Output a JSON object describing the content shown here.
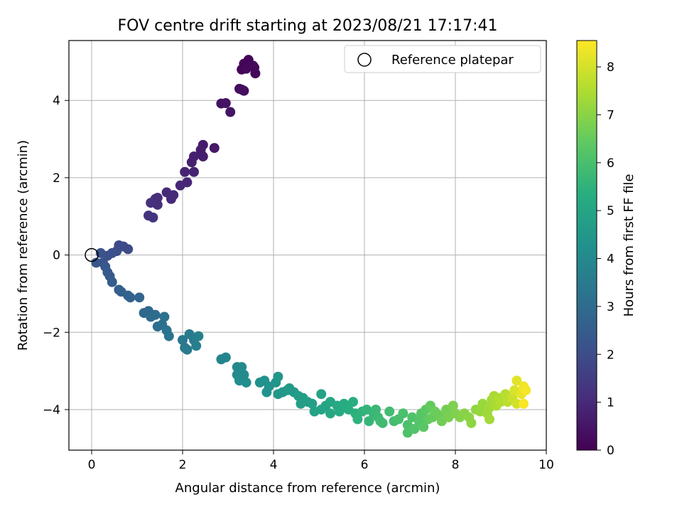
{
  "chart_data": {
    "type": "scatter",
    "title": "FOV centre drift starting at 2023/08/21 17:17:41",
    "xlabel": "Angular distance from reference (arcmin)",
    "ylabel": "Rotation from reference (arcmin)",
    "xlim": [
      -0.5,
      10
    ],
    "ylim": [
      -5.05,
      5.55
    ],
    "xticks": [
      0,
      2,
      4,
      6,
      8,
      10
    ],
    "yticks": [
      -4,
      -2,
      0,
      2,
      4
    ],
    "grid": true,
    "legend": {
      "placement": "top-right",
      "label": "Reference platepar"
    },
    "reference_point": {
      "x": 0,
      "y": 0
    },
    "colorbar": {
      "label": "Hours from first FF file",
      "range": [
        0,
        8.55
      ],
      "ticks": [
        0,
        1,
        2,
        3,
        4,
        5,
        6,
        7,
        8
      ],
      "colormap": "viridis"
    },
    "points": [
      {
        "x": 3.35,
        "y": 4.95,
        "t": 0.05
      },
      {
        "x": 3.45,
        "y": 5.05,
        "t": 0.08
      },
      {
        "x": 3.3,
        "y": 4.8,
        "t": 0.1
      },
      {
        "x": 3.55,
        "y": 4.9,
        "t": 0.12
      },
      {
        "x": 3.6,
        "y": 4.7,
        "t": 0.15
      },
      {
        "x": 3.4,
        "y": 4.82,
        "t": 0.18
      },
      {
        "x": 3.58,
        "y": 4.85,
        "t": 0.2
      },
      {
        "x": 3.25,
        "y": 4.3,
        "t": 0.3
      },
      {
        "x": 3.35,
        "y": 4.25,
        "t": 0.32
      },
      {
        "x": 3.3,
        "y": 4.28,
        "t": 0.35
      },
      {
        "x": 2.85,
        "y": 3.92,
        "t": 0.4
      },
      {
        "x": 2.95,
        "y": 3.93,
        "t": 0.45
      },
      {
        "x": 3.05,
        "y": 3.7,
        "t": 0.5
      },
      {
        "x": 2.7,
        "y": 2.77,
        "t": 0.6
      },
      {
        "x": 2.45,
        "y": 2.85,
        "t": 0.65
      },
      {
        "x": 2.4,
        "y": 2.72,
        "t": 0.7
      },
      {
        "x": 2.45,
        "y": 2.55,
        "t": 0.72
      },
      {
        "x": 2.25,
        "y": 2.55,
        "t": 0.78
      },
      {
        "x": 2.2,
        "y": 2.4,
        "t": 0.8
      },
      {
        "x": 2.25,
        "y": 2.15,
        "t": 0.85
      },
      {
        "x": 2.05,
        "y": 2.15,
        "t": 0.88
      },
      {
        "x": 2.1,
        "y": 1.88,
        "t": 0.92
      },
      {
        "x": 1.95,
        "y": 1.8,
        "t": 0.95
      },
      {
        "x": 1.8,
        "y": 1.55,
        "t": 1.0
      },
      {
        "x": 1.75,
        "y": 1.45,
        "t": 1.02
      },
      {
        "x": 1.65,
        "y": 1.62,
        "t": 1.05
      },
      {
        "x": 1.45,
        "y": 1.48,
        "t": 1.1
      },
      {
        "x": 1.4,
        "y": 1.45,
        "t": 1.12
      },
      {
        "x": 1.45,
        "y": 1.3,
        "t": 1.15
      },
      {
        "x": 1.3,
        "y": 1.35,
        "t": 1.2
      },
      {
        "x": 1.25,
        "y": 1.02,
        "t": 1.25
      },
      {
        "x": 1.35,
        "y": 0.97,
        "t": 1.3
      },
      {
        "x": 0.6,
        "y": 0.25,
        "t": 1.9
      },
      {
        "x": 0.7,
        "y": 0.22,
        "t": 1.95
      },
      {
        "x": 0.8,
        "y": 0.15,
        "t": 2.0
      },
      {
        "x": 0.55,
        "y": 0.1,
        "t": 2.05
      },
      {
        "x": 0.45,
        "y": 0.05,
        "t": 2.1
      },
      {
        "x": 0.35,
        "y": -0.02,
        "t": 2.15
      },
      {
        "x": 0.2,
        "y": 0.05,
        "t": 2.2
      },
      {
        "x": 0.25,
        "y": -0.2,
        "t": 2.25
      },
      {
        "x": 0.1,
        "y": -0.2,
        "t": 2.3
      },
      {
        "x": 0.3,
        "y": -0.3,
        "t": 2.35
      },
      {
        "x": 0.35,
        "y": -0.45,
        "t": 2.4
      },
      {
        "x": 0.4,
        "y": -0.55,
        "t": 2.45
      },
      {
        "x": 0.45,
        "y": -0.7,
        "t": 2.5
      },
      {
        "x": 0.6,
        "y": -0.9,
        "t": 2.55
      },
      {
        "x": 0.65,
        "y": -0.95,
        "t": 2.6
      },
      {
        "x": 0.8,
        "y": -1.05,
        "t": 2.7
      },
      {
        "x": 0.85,
        "y": -1.1,
        "t": 2.75
      },
      {
        "x": 1.05,
        "y": -1.1,
        "t": 2.8
      },
      {
        "x": 1.15,
        "y": -1.5,
        "t": 2.9
      },
      {
        "x": 1.25,
        "y": -1.45,
        "t": 2.95
      },
      {
        "x": 1.3,
        "y": -1.6,
        "t": 3.0
      },
      {
        "x": 1.4,
        "y": -1.55,
        "t": 3.05
      },
      {
        "x": 1.45,
        "y": -1.85,
        "t": 3.1
      },
      {
        "x": 1.55,
        "y": -1.8,
        "t": 3.15
      },
      {
        "x": 1.6,
        "y": -1.6,
        "t": 3.2
      },
      {
        "x": 1.65,
        "y": -1.95,
        "t": 3.25
      },
      {
        "x": 1.7,
        "y": -2.1,
        "t": 3.3
      },
      {
        "x": 2.0,
        "y": -2.2,
        "t": 3.4
      },
      {
        "x": 2.05,
        "y": -2.4,
        "t": 3.45
      },
      {
        "x": 2.1,
        "y": -2.45,
        "t": 3.5
      },
      {
        "x": 2.15,
        "y": -2.05,
        "t": 3.55
      },
      {
        "x": 2.25,
        "y": -2.2,
        "t": 3.6
      },
      {
        "x": 2.3,
        "y": -2.35,
        "t": 3.65
      },
      {
        "x": 2.35,
        "y": -2.1,
        "t": 3.7
      },
      {
        "x": 2.85,
        "y": -2.7,
        "t": 3.85
      },
      {
        "x": 2.95,
        "y": -2.65,
        "t": 3.9
      },
      {
        "x": 3.2,
        "y": -2.9,
        "t": 4.0
      },
      {
        "x": 3.3,
        "y": -2.9,
        "t": 4.05
      },
      {
        "x": 3.2,
        "y": -3.1,
        "t": 4.1
      },
      {
        "x": 3.25,
        "y": -3.25,
        "t": 4.12
      },
      {
        "x": 3.35,
        "y": -3.1,
        "t": 4.15
      },
      {
        "x": 3.4,
        "y": -3.3,
        "t": 4.18
      },
      {
        "x": 3.7,
        "y": -3.3,
        "t": 4.3
      },
      {
        "x": 3.8,
        "y": -3.25,
        "t": 4.35
      },
      {
        "x": 3.85,
        "y": -3.55,
        "t": 4.38
      },
      {
        "x": 3.9,
        "y": -3.4,
        "t": 4.4
      },
      {
        "x": 4.05,
        "y": -3.3,
        "t": 4.45
      },
      {
        "x": 4.1,
        "y": -3.15,
        "t": 4.48
      },
      {
        "x": 4.1,
        "y": -3.6,
        "t": 4.5
      },
      {
        "x": 4.2,
        "y": -3.55,
        "t": 4.55
      },
      {
        "x": 4.3,
        "y": -3.5,
        "t": 4.6
      },
      {
        "x": 4.35,
        "y": -3.45,
        "t": 4.62
      },
      {
        "x": 4.45,
        "y": -3.55,
        "t": 4.65
      },
      {
        "x": 4.55,
        "y": -3.65,
        "t": 4.7
      },
      {
        "x": 4.65,
        "y": -3.7,
        "t": 4.75
      },
      {
        "x": 4.6,
        "y": -3.85,
        "t": 4.78
      },
      {
        "x": 4.75,
        "y": -3.8,
        "t": 4.8
      },
      {
        "x": 4.85,
        "y": -3.85,
        "t": 4.85
      },
      {
        "x": 4.9,
        "y": -4.05,
        "t": 4.9
      },
      {
        "x": 5.05,
        "y": -3.6,
        "t": 4.95
      },
      {
        "x": 5.05,
        "y": -4.0,
        "t": 5.0
      },
      {
        "x": 5.15,
        "y": -3.9,
        "t": 5.05
      },
      {
        "x": 5.25,
        "y": -3.8,
        "t": 5.1
      },
      {
        "x": 5.25,
        "y": -4.1,
        "t": 5.15
      },
      {
        "x": 5.4,
        "y": -3.9,
        "t": 5.2
      },
      {
        "x": 5.45,
        "y": -4.05,
        "t": 5.25
      },
      {
        "x": 5.55,
        "y": -3.85,
        "t": 5.3
      },
      {
        "x": 5.65,
        "y": -4.0,
        "t": 5.35
      },
      {
        "x": 5.75,
        "y": -3.8,
        "t": 5.4
      },
      {
        "x": 5.8,
        "y": -4.1,
        "t": 5.45
      },
      {
        "x": 5.85,
        "y": -4.25,
        "t": 5.5
      },
      {
        "x": 5.95,
        "y": -4.05,
        "t": 5.55
      },
      {
        "x": 6.05,
        "y": -4.0,
        "t": 5.6
      },
      {
        "x": 6.1,
        "y": -4.3,
        "t": 5.65
      },
      {
        "x": 6.2,
        "y": -4.1,
        "t": 5.7
      },
      {
        "x": 6.25,
        "y": -4.0,
        "t": 5.75
      },
      {
        "x": 6.3,
        "y": -4.2,
        "t": 5.8
      },
      {
        "x": 6.4,
        "y": -4.35,
        "t": 5.85
      },
      {
        "x": 6.35,
        "y": -4.3,
        "t": 5.88
      },
      {
        "x": 6.55,
        "y": -4.05,
        "t": 5.9
      },
      {
        "x": 6.65,
        "y": -4.3,
        "t": 5.95
      },
      {
        "x": 6.75,
        "y": -4.25,
        "t": 6.0
      },
      {
        "x": 6.85,
        "y": -4.1,
        "t": 6.05
      },
      {
        "x": 6.95,
        "y": -4.4,
        "t": 6.1
      },
      {
        "x": 6.95,
        "y": -4.6,
        "t": 6.12
      },
      {
        "x": 7.05,
        "y": -4.2,
        "t": 6.15
      },
      {
        "x": 7.1,
        "y": -4.5,
        "t": 6.2
      },
      {
        "x": 7.2,
        "y": -4.3,
        "t": 6.25
      },
      {
        "x": 7.25,
        "y": -4.1,
        "t": 6.3
      },
      {
        "x": 7.3,
        "y": -4.45,
        "t": 6.35
      },
      {
        "x": 7.35,
        "y": -4.0,
        "t": 6.4
      },
      {
        "x": 7.4,
        "y": -4.25,
        "t": 6.45
      },
      {
        "x": 7.45,
        "y": -3.9,
        "t": 6.5
      },
      {
        "x": 7.5,
        "y": -4.2,
        "t": 6.55
      },
      {
        "x": 7.55,
        "y": -4.05,
        "t": 6.6
      },
      {
        "x": 7.65,
        "y": -4.15,
        "t": 6.65
      },
      {
        "x": 7.7,
        "y": -4.3,
        "t": 6.7
      },
      {
        "x": 7.8,
        "y": -4.0,
        "t": 6.75
      },
      {
        "x": 7.85,
        "y": -4.2,
        "t": 6.8
      },
      {
        "x": 7.95,
        "y": -3.9,
        "t": 6.85
      },
      {
        "x": 8.0,
        "y": -4.1,
        "t": 6.9
      },
      {
        "x": 8.1,
        "y": -4.2,
        "t": 6.95
      },
      {
        "x": 8.2,
        "y": -4.1,
        "t": 7.0
      },
      {
        "x": 8.3,
        "y": -4.2,
        "t": 7.05
      },
      {
        "x": 8.35,
        "y": -4.35,
        "t": 7.1
      },
      {
        "x": 8.45,
        "y": -4.0,
        "t": 7.15
      },
      {
        "x": 8.55,
        "y": -4.05,
        "t": 7.2
      },
      {
        "x": 8.6,
        "y": -3.85,
        "t": 7.25
      },
      {
        "x": 8.7,
        "y": -4.1,
        "t": 7.3
      },
      {
        "x": 8.75,
        "y": -3.95,
        "t": 7.35
      },
      {
        "x": 8.75,
        "y": -4.25,
        "t": 7.38
      },
      {
        "x": 8.8,
        "y": -3.75,
        "t": 7.4
      },
      {
        "x": 8.85,
        "y": -3.65,
        "t": 7.45
      },
      {
        "x": 8.9,
        "y": -3.9,
        "t": 7.5
      },
      {
        "x": 8.95,
        "y": -3.7,
        "t": 7.55
      },
      {
        "x": 9.0,
        "y": -3.8,
        "t": 7.6
      },
      {
        "x": 9.1,
        "y": -3.6,
        "t": 7.65
      },
      {
        "x": 9.15,
        "y": -3.8,
        "t": 7.7
      },
      {
        "x": 9.25,
        "y": -3.7,
        "t": 7.9
      },
      {
        "x": 9.35,
        "y": -3.85,
        "t": 8.0
      },
      {
        "x": 9.3,
        "y": -3.5,
        "t": 8.1
      },
      {
        "x": 9.35,
        "y": -3.25,
        "t": 8.2
      },
      {
        "x": 9.45,
        "y": -3.6,
        "t": 8.3
      },
      {
        "x": 9.5,
        "y": -3.4,
        "t": 8.4
      },
      {
        "x": 9.55,
        "y": -3.5,
        "t": 8.45
      },
      {
        "x": 9.5,
        "y": -3.85,
        "t": 8.5
      }
    ]
  }
}
